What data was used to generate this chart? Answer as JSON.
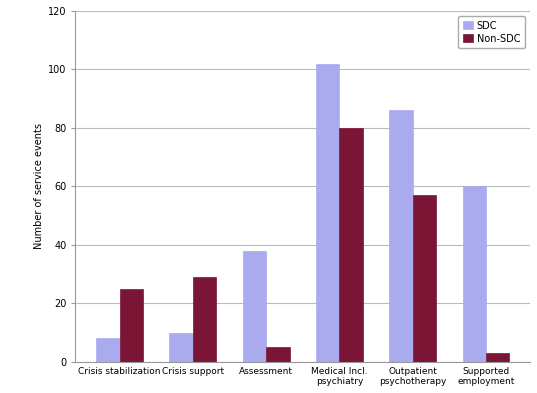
{
  "categories": [
    "Crisis stabilization",
    "Crisis support",
    "Assessment",
    "Medical Incl.\npsychiatry",
    "Outpatient\npsychotherapy",
    "Supported\nemployment"
  ],
  "sdc_values": [
    8,
    10,
    38,
    102,
    86,
    60
  ],
  "non_sdc_values": [
    25,
    29,
    5,
    80,
    57,
    3
  ],
  "sdc_color": "#aaaaee",
  "non_sdc_color": "#7B1535",
  "ylabel": "Number of service events",
  "ylim": [
    0,
    120
  ],
  "yticks": [
    0,
    20,
    40,
    60,
    80,
    100,
    120
  ],
  "legend_labels": [
    "SDC",
    "Non-SDC"
  ],
  "bar_width": 0.32,
  "background_color": "#ffffff",
  "grid_color": "#bbbbbb",
  "legend_box_color": "#dddddd"
}
